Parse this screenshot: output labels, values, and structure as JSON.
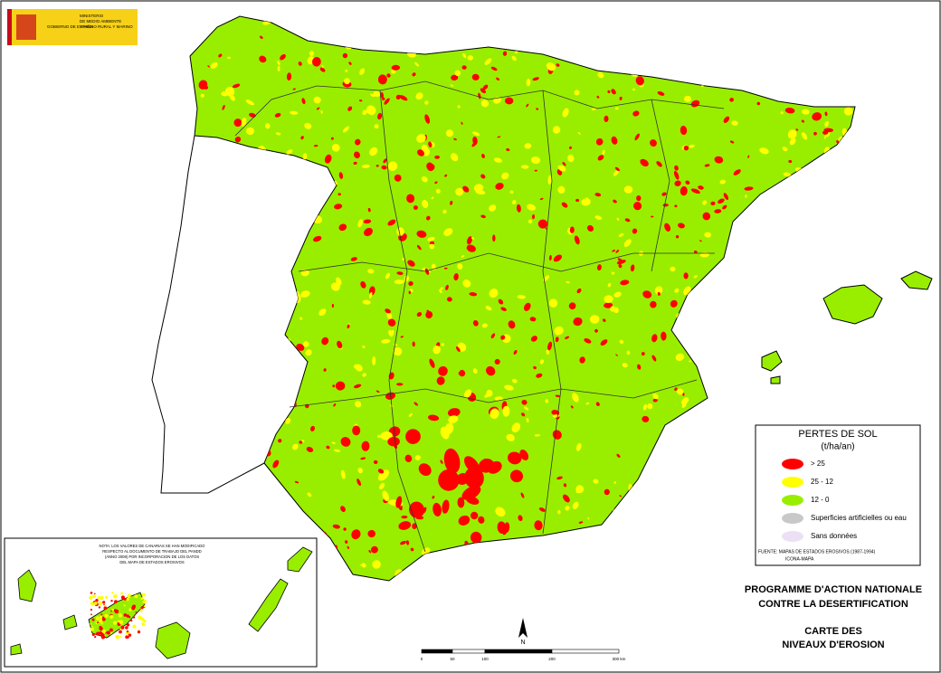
{
  "header": {
    "government": "GOBIERNO DE ESPAÑA",
    "ministry": [
      "MINISTERIO",
      "DE MEDIO AMBIENTE",
      "Y MEDIO RURAL Y MARINO"
    ]
  },
  "legend": {
    "title": "PERTES DE SOL",
    "unit": "(t/ha/an)",
    "items": [
      {
        "label": "> 25",
        "color": "#ff0000"
      },
      {
        "label": "25 - 12",
        "color": "#ffff00"
      },
      {
        "label": "12 - 0",
        "color": "#99ee00"
      },
      {
        "label": "Superficies artificielles ou eau",
        "color": "#c8c8c8"
      },
      {
        "label": "Sans données",
        "color": "#ece0f4"
      }
    ],
    "source": [
      "FUENTE: MAPAS DE ESTADOS EROSIVOS (1987-1994)",
      "ICONA-MAPA"
    ]
  },
  "canary_note": [
    "NOTA: LOS VALORES DE CANARIAS SE HAN MODIFICADO",
    "RESPECTO AL DOCUMENTO DE TRABAJO DEL PANDD",
    "(ANNO 2008) POR INCORPORACION DE LOS DATOS",
    "DEL MAPA DE ESTADOS EROSIVOS"
  ],
  "title": [
    "PROGRAMME D'ACTION NATIONALE",
    "CONTRE LA DESERTIFICATION",
    "CARTE DES",
    "NIVEAUX D'EROSION"
  ],
  "north": "N",
  "scale": [
    "0",
    "50",
    "100",
    "200",
    "300 km"
  ]
}
